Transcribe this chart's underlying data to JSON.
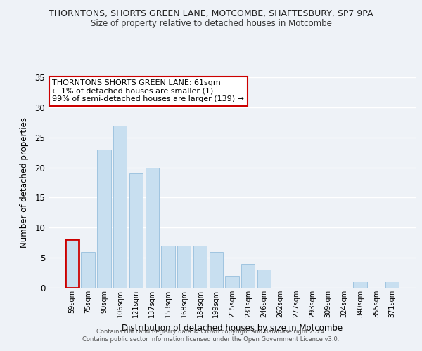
{
  "title1": "THORNTONS, SHORTS GREEN LANE, MOTCOMBE, SHAFTESBURY, SP7 9PA",
  "title2": "Size of property relative to detached houses in Motcombe",
  "xlabel": "Distribution of detached houses by size in Motcombe",
  "ylabel": "Number of detached properties",
  "bar_labels": [
    "59sqm",
    "75sqm",
    "90sqm",
    "106sqm",
    "121sqm",
    "137sqm",
    "153sqm",
    "168sqm",
    "184sqm",
    "199sqm",
    "215sqm",
    "231sqm",
    "246sqm",
    "262sqm",
    "277sqm",
    "293sqm",
    "309sqm",
    "324sqm",
    "340sqm",
    "355sqm",
    "371sqm"
  ],
  "bar_values": [
    8,
    6,
    23,
    27,
    19,
    20,
    7,
    7,
    7,
    6,
    2,
    4,
    3,
    0,
    0,
    0,
    0,
    0,
    1,
    0,
    1
  ],
  "bar_color": "#c8dff0",
  "bar_edge_color": "#a0c4e0",
  "highlight_bar_index": 0,
  "highlight_edge_color": "#cc0000",
  "ylim": [
    0,
    35
  ],
  "yticks": [
    0,
    5,
    10,
    15,
    20,
    25,
    30,
    35
  ],
  "annotation_line1": "THORNTONS SHORTS GREEN LANE: 61sqm",
  "annotation_line2": "← 1% of detached houses are smaller (1)",
  "annotation_line3": "99% of semi-detached houses are larger (139) →",
  "footer1": "Contains HM Land Registry data © Crown copyright and database right 2024.",
  "footer2": "Contains public sector information licensed under the Open Government Licence v3.0.",
  "bg_color": "#eef2f7"
}
